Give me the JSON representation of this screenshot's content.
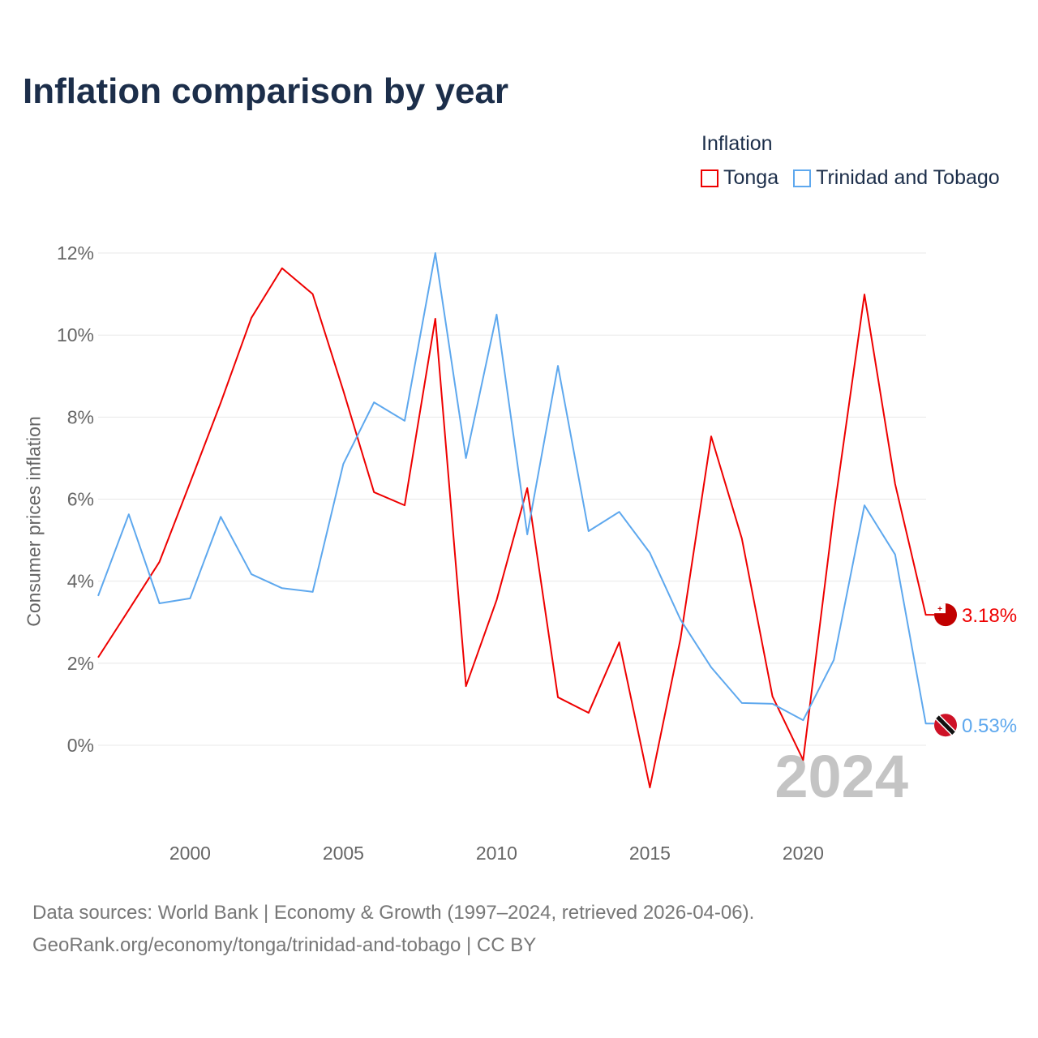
{
  "chart_data": {
    "type": "line",
    "title": "Inflation comparison by year",
    "ylabel": "Consumer prices inflation",
    "xlabel": "",
    "legend_title": "Inflation",
    "legend_position": "top-right",
    "ylim": [
      -2,
      12
    ],
    "xlim": [
      1997,
      2024
    ],
    "yticks": [
      0,
      2,
      4,
      6,
      8,
      10,
      12
    ],
    "ytick_labels": [
      "0%",
      "2%",
      "4%",
      "6%",
      "8%",
      "10%",
      "12%"
    ],
    "xticks": [
      2000,
      2005,
      2010,
      2015,
      2020
    ],
    "xtick_labels": [
      "2000",
      "2005",
      "2010",
      "2015",
      "2020"
    ],
    "grid": true,
    "year_watermark": "2024",
    "x": [
      1997,
      1998,
      1999,
      2000,
      2001,
      2002,
      2003,
      2004,
      2005,
      2006,
      2007,
      2008,
      2009,
      2010,
      2011,
      2012,
      2013,
      2014,
      2015,
      2016,
      2017,
      2018,
      2019,
      2020,
      2021,
      2022,
      2023,
      2024
    ],
    "series": [
      {
        "name": "Tonga",
        "color": "#ee0000",
        "end_label": "3.18%",
        "values": [
          2.14,
          3.3,
          4.47,
          6.4,
          8.35,
          10.42,
          11.63,
          11.0,
          8.64,
          6.17,
          5.85,
          10.4,
          1.44,
          3.54,
          6.27,
          1.17,
          0.79,
          2.51,
          -1.03,
          2.6,
          7.53,
          5.04,
          1.19,
          -0.36,
          5.67,
          10.99,
          6.37,
          3.18
        ]
      },
      {
        "name": "Trinidad and Tobago",
        "color": "#5ea8ee",
        "end_label": "0.53%",
        "values": [
          3.64,
          5.63,
          3.46,
          3.58,
          5.57,
          4.17,
          3.83,
          3.74,
          6.86,
          8.36,
          7.91,
          12.0,
          7.0,
          10.5,
          5.14,
          9.25,
          5.22,
          5.69,
          4.69,
          3.06,
          1.9,
          1.03,
          1.01,
          0.61,
          2.08,
          5.85,
          4.65,
          0.53
        ]
      }
    ]
  },
  "source": {
    "line1": "Data sources: World Bank | Economy & Growth (1997–2024, retrieved 2026-04-06).",
    "line2": "GeoRank.org/economy/tonga/trinidad-and-tobago | CC BY"
  }
}
